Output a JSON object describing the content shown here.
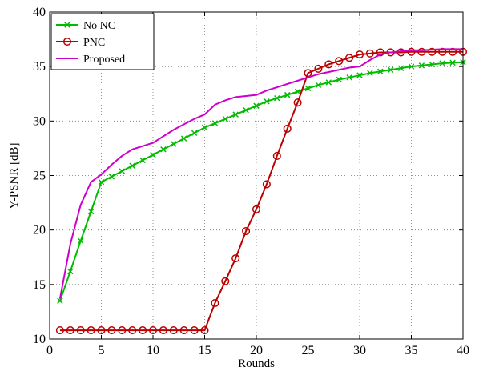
{
  "chart_data": {
    "type": "line",
    "title": "",
    "xlabel": "Rounds",
    "ylabel": "Y-PSNR [dB]",
    "xlim": [
      0,
      40
    ],
    "ylim": [
      10,
      40
    ],
    "xticks": [
      0,
      5,
      10,
      15,
      20,
      25,
      30,
      35,
      40
    ],
    "yticks": [
      10,
      15,
      20,
      25,
      30,
      35,
      40
    ],
    "grid": true,
    "legend": "top-left",
    "series": [
      {
        "name": "No NC",
        "color": "#00bb00",
        "marker": "x",
        "x": [
          1,
          2,
          3,
          4,
          5,
          6,
          7,
          8,
          9,
          10,
          11,
          12,
          13,
          14,
          15,
          16,
          17,
          18,
          19,
          20,
          21,
          22,
          23,
          24,
          25,
          26,
          27,
          28,
          29,
          30,
          31,
          32,
          33,
          34,
          35,
          36,
          37,
          38,
          39,
          40
        ],
        "values": [
          13.5,
          16.2,
          19.0,
          21.7,
          24.4,
          24.9,
          25.4,
          25.9,
          26.4,
          26.9,
          27.4,
          27.9,
          28.4,
          28.9,
          29.4,
          29.8,
          30.2,
          30.6,
          31.0,
          31.4,
          31.8,
          32.1,
          32.4,
          32.7,
          33.0,
          33.3,
          33.55,
          33.8,
          34.0,
          34.2,
          34.4,
          34.55,
          34.7,
          34.85,
          35.0,
          35.1,
          35.2,
          35.3,
          35.35,
          35.4
        ]
      },
      {
        "name": "PNC",
        "color": "#bb0000",
        "marker": "o",
        "x": [
          1,
          2,
          3,
          4,
          5,
          6,
          7,
          8,
          9,
          10,
          11,
          12,
          13,
          14,
          15,
          16,
          17,
          18,
          19,
          20,
          21,
          22,
          23,
          24,
          25,
          26,
          27,
          28,
          29,
          30,
          31,
          32,
          33,
          34,
          35,
          36,
          37,
          38,
          39,
          40
        ],
        "values": [
          10.8,
          10.8,
          10.8,
          10.8,
          10.8,
          10.8,
          10.8,
          10.8,
          10.8,
          10.8,
          10.8,
          10.8,
          10.8,
          10.8,
          10.8,
          13.3,
          15.3,
          17.4,
          19.9,
          21.9,
          24.2,
          26.8,
          29.3,
          31.7,
          34.4,
          34.8,
          35.2,
          35.5,
          35.8,
          36.1,
          36.2,
          36.3,
          36.3,
          36.3,
          36.35,
          36.35,
          36.35,
          36.35,
          36.35,
          36.35
        ]
      },
      {
        "name": "Proposed",
        "color": "#cc00cc",
        "marker": "none",
        "x": [
          1,
          2,
          3,
          4,
          5,
          6,
          7,
          8,
          9,
          10,
          11,
          12,
          13,
          14,
          15,
          16,
          17,
          18,
          19,
          20,
          21,
          22,
          23,
          24,
          25,
          26,
          27,
          28,
          29,
          30,
          31,
          32,
          33,
          34,
          35,
          36,
          37,
          38,
          39,
          40
        ],
        "values": [
          13.7,
          18.7,
          22.3,
          24.4,
          25.1,
          26.0,
          26.8,
          27.4,
          27.7,
          28.0,
          28.6,
          29.2,
          29.7,
          30.2,
          30.6,
          31.5,
          31.9,
          32.2,
          32.3,
          32.4,
          32.8,
          33.1,
          33.4,
          33.7,
          34.0,
          34.3,
          34.5,
          34.7,
          34.9,
          35.0,
          35.6,
          36.1,
          36.3,
          36.4,
          36.5,
          36.5,
          36.55,
          36.6,
          36.6,
          36.6
        ]
      }
    ]
  }
}
